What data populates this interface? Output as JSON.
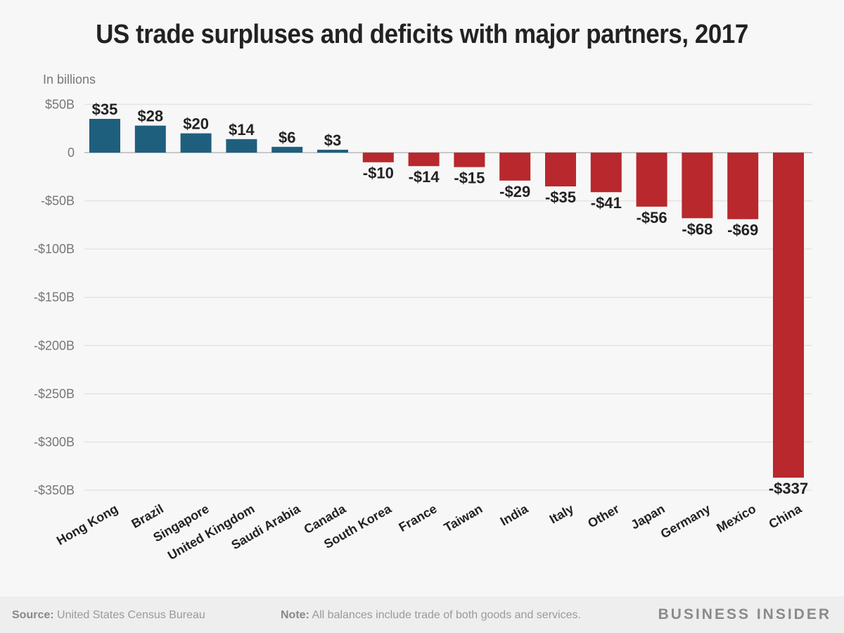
{
  "chart_data": {
    "type": "bar",
    "title": "US trade surpluses and deficits with major partners, 2017",
    "subtitle": "In billions",
    "xlabel": "",
    "ylabel": "",
    "ylim": [
      -350,
      50
    ],
    "yticks": [
      50,
      0,
      -50,
      -100,
      -150,
      -200,
      -250,
      -300,
      -350
    ],
    "ytick_labels": [
      "$50B",
      "0",
      "-$50B",
      "-$100B",
      "-$150B",
      "-$200B",
      "-$250B",
      "-$300B",
      "-$350B"
    ],
    "grid": true,
    "categories": [
      "Hong Kong",
      "Brazil",
      "Singapore",
      "United Kingdom",
      "Saudi Arabia",
      "Canada",
      "South Korea",
      "France",
      "Taiwan",
      "India",
      "Italy",
      "Other",
      "Japan",
      "Germany",
      "Mexico",
      "China"
    ],
    "values": [
      35,
      28,
      20,
      14,
      6,
      3,
      -10,
      -14,
      -15,
      -29,
      -35,
      -41,
      -56,
      -68,
      -69,
      -337
    ],
    "data_labels": [
      "$35",
      "$28",
      "$20",
      "$14",
      "$6",
      "$3",
      "-$10",
      "-$14",
      "-$15",
      "-$29",
      "-$35",
      "-$41",
      "-$56",
      "-$68",
      "-$69",
      "-$337"
    ],
    "colors": {
      "surplus": "#1f5f7e",
      "deficit": "#b8282c"
    }
  },
  "footer": {
    "source_label": "Source:",
    "source_text": "United States Census Bureau",
    "note_label": "Note:",
    "note_text": "All balances include trade of both goods and services.",
    "brand": "BUSINESS INSIDER"
  }
}
